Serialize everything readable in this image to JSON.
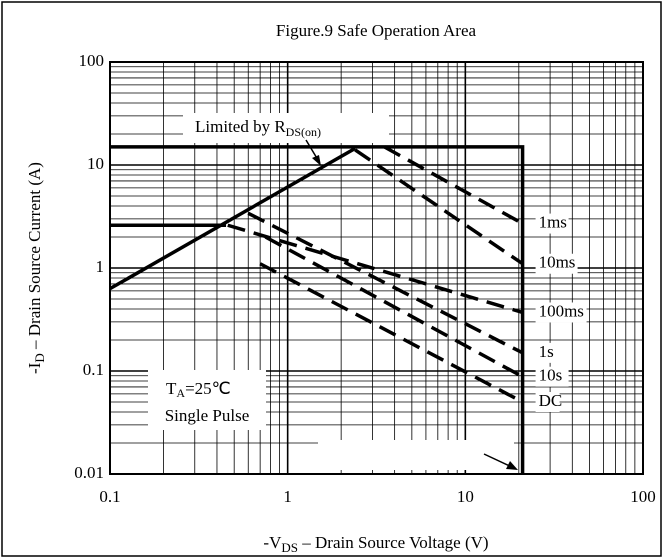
{
  "chart_data": {
    "type": "line",
    "title": "Figure.9 Safe Operation Area",
    "y_label": [
      "-I",
      "D",
      " – Drain Source Current (A)"
    ],
    "x_label": [
      "-V",
      "DS",
      " – Drain Source Voltage (V)"
    ],
    "annotations": {
      "limit": [
        "Limited by R",
        "DS(on)"
      ],
      "conditions": [
        "T",
        "A",
        "=25℃",
        "Single Pulse"
      ]
    },
    "log_x": true,
    "log_y": true,
    "grid": true,
    "color": "#000000",
    "xlim": [
      0.1,
      100
    ],
    "xticks": [
      0.1,
      1,
      10,
      100
    ],
    "ylim": [
      0.01,
      100
    ],
    "yticks": [
      0.01,
      0.1,
      1,
      10,
      100
    ],
    "series": [
      {
        "style": "solid",
        "x": [
          0.1,
          2.4
        ],
        "values": [
          0.63,
          14.5
        ]
      },
      {
        "style": "solid",
        "x": [
          0.1,
          21,
          21
        ],
        "values": [
          15,
          15,
          0.01
        ]
      },
      {
        "style": "solid",
        "x": [
          0.1,
          0.45
        ],
        "values": [
          2.6,
          2.6
        ]
      },
      {
        "name": "1ms",
        "style": "dashed",
        "x": [
          3.5,
          21
        ],
        "values": [
          15,
          2.7
        ]
      },
      {
        "name": "10ms",
        "style": "dashed",
        "x": [
          2.4,
          21
        ],
        "values": [
          14,
          1.1
        ]
      },
      {
        "name": "100ms",
        "style": "dashed",
        "x": [
          0.46,
          21
        ],
        "values": [
          2.6,
          0.37
        ]
      },
      {
        "name": "1s",
        "style": "dashed",
        "x": [
          0.6,
          21
        ],
        "values": [
          3.4,
          0.15
        ]
      },
      {
        "name": "10s",
        "style": "dashed",
        "x": [
          0.75,
          21
        ],
        "values": [
          2.0,
          0.088
        ]
      },
      {
        "name": "DC",
        "style": "dashed",
        "x": [
          0.7,
          21
        ],
        "values": [
          1.1,
          0.05
        ]
      }
    ]
  }
}
